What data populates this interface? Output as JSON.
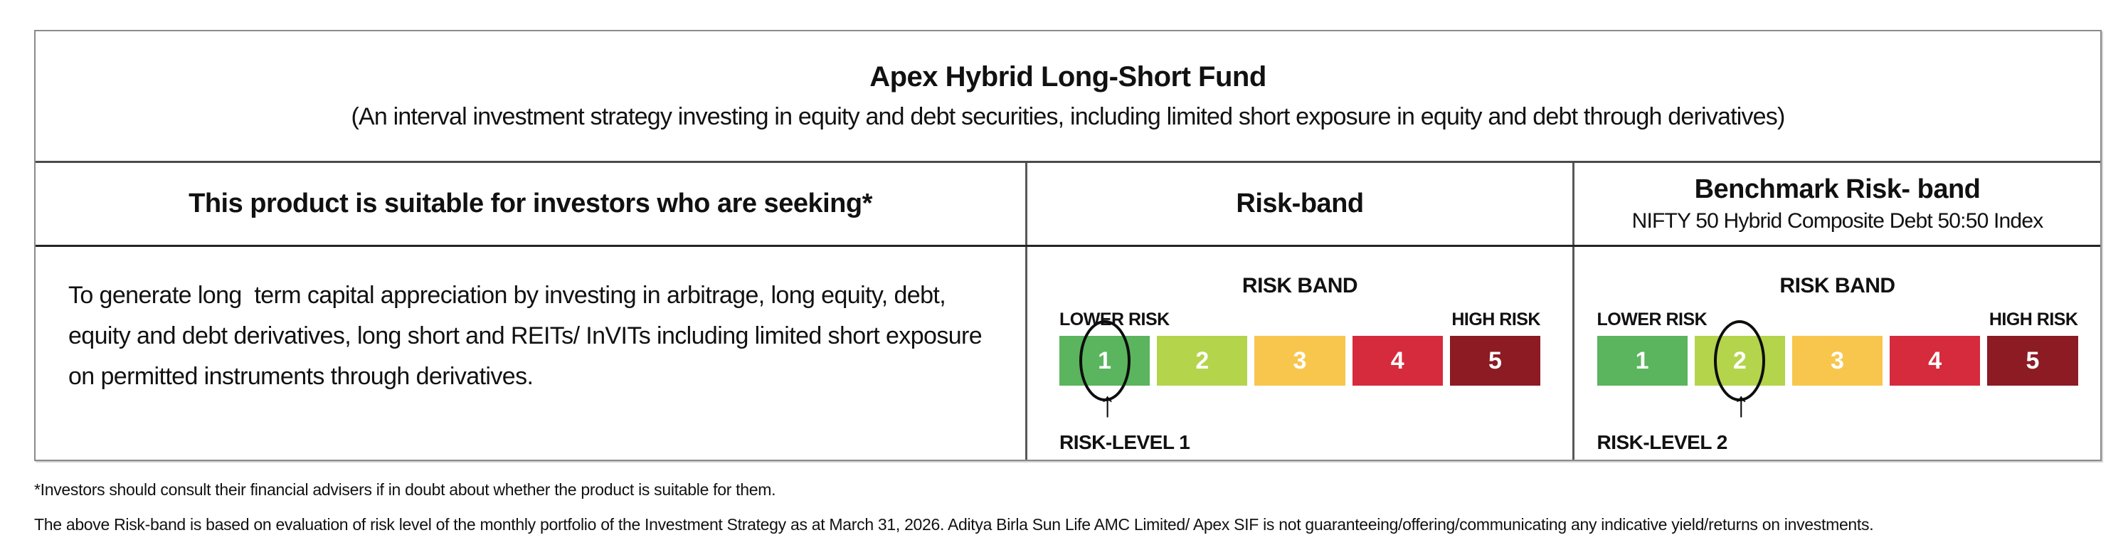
{
  "table": {
    "title": "Apex Hybrid Long-Short Fund",
    "subtitle": "(An interval investment strategy investing in equity and debt securities, including limited short exposure in equity and debt through derivatives)",
    "suitability_header": "This product is suitable for investors who are seeking*",
    "riskband_header": "Risk-band",
    "benchmark_header": "Benchmark Risk- band",
    "benchmark_subheader": "NIFTY 50 Hybrid Composite Debt 50:50 Index",
    "suitability_text": "To generate long  term capital appreciation by investing in arbitrage, long equity, debt, equity and debt derivatives, long short and REITs/ InVITs including limited short exposure on permitted instruments through derivatives."
  },
  "risk_scale": {
    "title": "RISK BAND",
    "lower_label": "LOWER RISK",
    "higher_label": "HIGH RISK",
    "levels": [
      {
        "value": "1",
        "color": "#5bb45e"
      },
      {
        "value": "2",
        "color": "#b4d44c"
      },
      {
        "value": "3",
        "color": "#f8c64d"
      },
      {
        "value": "4",
        "color": "#d62b3d"
      },
      {
        "value": "5",
        "color": "#8c1b24"
      }
    ]
  },
  "fund_riskband": {
    "selected_level": 1,
    "arrow": "↑",
    "caption": "RISK-LEVEL 1"
  },
  "benchmark_riskband": {
    "selected_level": 2,
    "arrow": "↑",
    "caption": "RISK-LEVEL 2"
  },
  "footnotes": [
    "*Investors should consult their financial advisers if in doubt about whether the product is suitable for them.",
    "The above Risk-band is based on evaluation of risk level of the monthly portfolio of the Investment Strategy as at March 31, 2026. Aditya Birla Sun Life AMC Limited/ Apex SIF is not guaranteeing/offering/communicating any indicative yield/returns on investments."
  ]
}
